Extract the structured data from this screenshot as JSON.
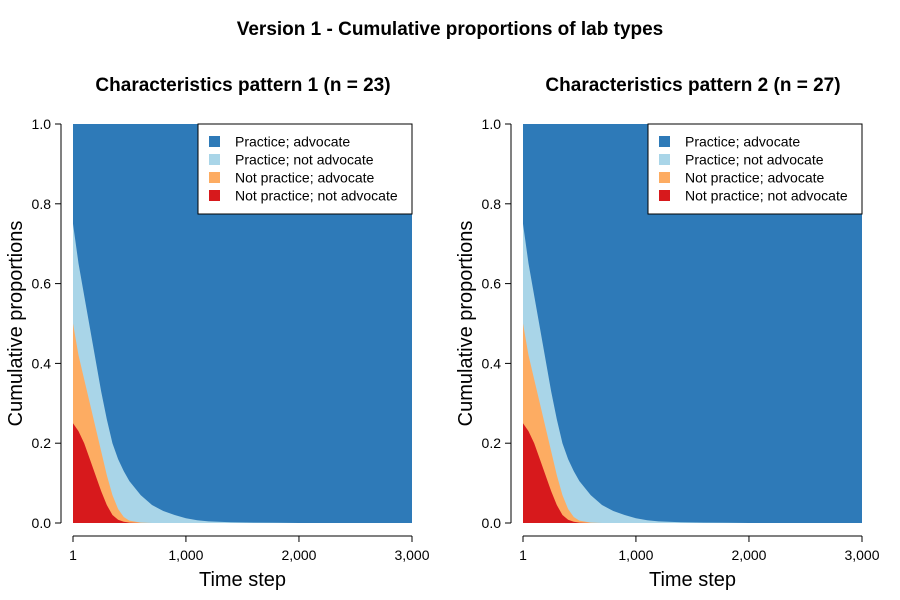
{
  "figure": {
    "title": "Version 1 - Cumulative proportions of lab types"
  },
  "colors": {
    "practice_advocate": "#2e7ab8",
    "practice_not_advocate": "#a9d5e8",
    "not_practice_advocate": "#fdac62",
    "not_practice_not_advocate": "#d7191c"
  },
  "chart_data": [
    {
      "type": "area",
      "stacked": true,
      "title": "Characteristics pattern 1 (n = 23)",
      "xlabel": "Time step",
      "ylabel": "Cumulative proportions",
      "xlim": [
        1,
        3000
      ],
      "ylim": [
        0,
        1
      ],
      "xticks": [
        1,
        1000,
        2000,
        3000
      ],
      "xtick_labels": [
        "1",
        "1,000",
        "2,000",
        "3,000"
      ],
      "yticks": [
        0,
        0.2,
        0.4,
        0.6,
        0.8,
        1.0
      ],
      "ytick_labels": [
        "0.0",
        "0.2",
        "0.4",
        "0.6",
        "0.8",
        "1.0"
      ],
      "grid": false,
      "legend_position": "top-right",
      "x": [
        1,
        50,
        100,
        150,
        200,
        250,
        300,
        350,
        400,
        450,
        500,
        600,
        700,
        800,
        900,
        1000,
        1100,
        1200,
        1400,
        1600,
        1800,
        2000,
        2500,
        3000
      ],
      "series": [
        {
          "name": "Not practice; not advocate",
          "color_key": "not_practice_not_advocate",
          "cumulative": [
            0.25,
            0.23,
            0.2,
            0.16,
            0.12,
            0.08,
            0.045,
            0.02,
            0.008,
            0.003,
            0.001,
            0,
            0,
            0,
            0,
            0,
            0,
            0,
            0,
            0,
            0,
            0,
            0,
            0
          ]
        },
        {
          "name": "Not practice; advocate",
          "color_key": "not_practice_advocate",
          "cumulative": [
            0.5,
            0.42,
            0.36,
            0.3,
            0.24,
            0.18,
            0.12,
            0.07,
            0.035,
            0.015,
            0.006,
            0.001,
            0,
            0,
            0,
            0,
            0,
            0,
            0,
            0,
            0,
            0,
            0,
            0
          ]
        },
        {
          "name": "Practice; not advocate",
          "color_key": "practice_not_advocate",
          "cumulative": [
            0.75,
            0.65,
            0.57,
            0.49,
            0.41,
            0.33,
            0.26,
            0.2,
            0.16,
            0.13,
            0.105,
            0.07,
            0.045,
            0.03,
            0.02,
            0.012,
            0.007,
            0.004,
            0.002,
            0.001,
            0.0005,
            0,
            0,
            0
          ]
        },
        {
          "name": "Practice; advocate",
          "color_key": "practice_advocate",
          "cumulative": [
            1,
            1,
            1,
            1,
            1,
            1,
            1,
            1,
            1,
            1,
            1,
            1,
            1,
            1,
            1,
            1,
            1,
            1,
            1,
            1,
            1,
            1,
            1,
            1
          ]
        }
      ]
    },
    {
      "type": "area",
      "stacked": true,
      "title": "Characteristics pattern 2 (n = 27)",
      "xlabel": "Time step",
      "ylabel": "Cumulative proportions",
      "xlim": [
        1,
        3000
      ],
      "ylim": [
        0,
        1
      ],
      "xticks": [
        1,
        1000,
        2000,
        3000
      ],
      "xtick_labels": [
        "1",
        "1,000",
        "2,000",
        "3,000"
      ],
      "yticks": [
        0,
        0.2,
        0.4,
        0.6,
        0.8,
        1.0
      ],
      "ytick_labels": [
        "0.0",
        "0.2",
        "0.4",
        "0.6",
        "0.8",
        "1.0"
      ],
      "grid": false,
      "legend_position": "top-right",
      "x": [
        1,
        50,
        100,
        150,
        200,
        250,
        300,
        350,
        400,
        450,
        500,
        600,
        700,
        800,
        900,
        1000,
        1100,
        1200,
        1400,
        1600,
        1800,
        2000,
        2500,
        3000
      ],
      "series": [
        {
          "name": "Not practice; not advocate",
          "color_key": "not_practice_not_advocate",
          "cumulative": [
            0.25,
            0.23,
            0.2,
            0.16,
            0.12,
            0.08,
            0.045,
            0.02,
            0.008,
            0.003,
            0.001,
            0,
            0,
            0,
            0,
            0,
            0,
            0,
            0,
            0,
            0,
            0,
            0,
            0
          ]
        },
        {
          "name": "Not practice; advocate",
          "color_key": "not_practice_advocate",
          "cumulative": [
            0.5,
            0.42,
            0.36,
            0.3,
            0.24,
            0.18,
            0.12,
            0.07,
            0.035,
            0.015,
            0.006,
            0.001,
            0,
            0,
            0,
            0,
            0,
            0,
            0,
            0,
            0,
            0,
            0,
            0
          ]
        },
        {
          "name": "Practice; not advocate",
          "color_key": "practice_not_advocate",
          "cumulative": [
            0.75,
            0.65,
            0.57,
            0.49,
            0.41,
            0.33,
            0.26,
            0.2,
            0.16,
            0.13,
            0.105,
            0.07,
            0.045,
            0.03,
            0.02,
            0.012,
            0.007,
            0.004,
            0.002,
            0.001,
            0.0005,
            0,
            0,
            0
          ]
        },
        {
          "name": "Practice; advocate",
          "color_key": "practice_advocate",
          "cumulative": [
            1,
            1,
            1,
            1,
            1,
            1,
            1,
            1,
            1,
            1,
            1,
            1,
            1,
            1,
            1,
            1,
            1,
            1,
            1,
            1,
            1,
            1,
            1,
            1
          ]
        }
      ],
      "legend_order": [
        "Practice; advocate",
        "Practice; not advocate",
        "Not practice; advocate",
        "Not practice; not advocate"
      ]
    }
  ]
}
